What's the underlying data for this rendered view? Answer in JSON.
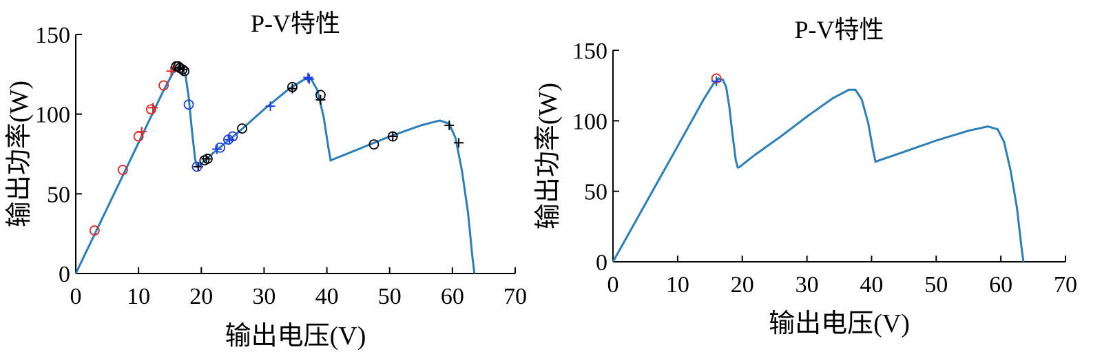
{
  "chart_data": [
    {
      "type": "line",
      "title": "P-V特性",
      "xlabel": "输出电压(V)",
      "ylabel": "输出功率(W)",
      "xlim": [
        0,
        70
      ],
      "ylim": [
        0,
        150
      ],
      "xticks": [
        0,
        10,
        20,
        30,
        40,
        50,
        60,
        70
      ],
      "yticks": [
        0,
        50,
        100,
        150
      ],
      "grid": false,
      "curve_color": "#2a7fb8",
      "curve": {
        "x": [
          0,
          5,
          10,
          14,
          15.5,
          16.3,
          17,
          17.5,
          18,
          18.5,
          19,
          19.3,
          19.5,
          22,
          26,
          30,
          34,
          36.5,
          37.5,
          38.5,
          39.5,
          40.2,
          40.6,
          45,
          50,
          55,
          58,
          59.5,
          60.5,
          61.5,
          62.5,
          63.2,
          63.5
        ],
        "y": [
          0,
          41,
          82,
          115,
          126,
          130,
          129,
          124,
          110,
          90,
          72,
          67,
          67,
          76,
          89,
          103,
          116,
          122,
          122,
          115,
          98,
          80,
          71,
          78,
          86,
          93,
          96,
          94,
          85,
          65,
          38,
          10,
          0
        ]
      },
      "markers": [
        {
          "color": "#e8221e",
          "symbol": "circle",
          "x": [
            3,
            7.5,
            10,
            12,
            14
          ],
          "y": [
            27,
            65,
            86,
            103,
            118
          ]
        },
        {
          "color": "#e8221e",
          "symbol": "plus",
          "x": [
            10.5,
            12.3,
            15.2,
            15.8
          ],
          "y": [
            89,
            104,
            127,
            129
          ]
        },
        {
          "color": "#000000",
          "symbol": "circle",
          "x": [
            16,
            16.3,
            16.6,
            17,
            17.3,
            20.5,
            21,
            26.5,
            34.5,
            39,
            47.5,
            50.5
          ],
          "y": [
            130,
            130,
            129,
            128,
            127,
            71,
            72,
            91,
            117,
            112,
            81,
            86
          ]
        },
        {
          "color": "#000000",
          "symbol": "plus",
          "x": [
            16.5,
            17,
            19.5,
            20.8,
            34.5,
            39,
            50.5,
            59.5,
            61
          ],
          "y": [
            129,
            128,
            67,
            72,
            116,
            109,
            86,
            93,
            82
          ]
        },
        {
          "color": "#1f3fe0",
          "symbol": "circle",
          "x": [
            18,
            19.3,
            23,
            24.3,
            25
          ],
          "y": [
            106,
            67,
            79,
            84,
            86
          ]
        },
        {
          "color": "#1f3fe0",
          "symbol": "plus",
          "x": [
            22.5,
            24.5,
            31,
            37,
            37.2
          ],
          "y": [
            78,
            84,
            105,
            123,
            122
          ]
        }
      ]
    },
    {
      "type": "line",
      "title": "P-V特性",
      "xlabel": "输出电压(V)",
      "ylabel": "输出功率(W)",
      "xlim": [
        0,
        70
      ],
      "ylim": [
        0,
        150
      ],
      "xticks": [
        0,
        10,
        20,
        30,
        40,
        50,
        60,
        70
      ],
      "yticks": [
        0,
        50,
        100,
        150
      ],
      "grid": false,
      "curve_color": "#2a7fb8",
      "curve": {
        "x": [
          0,
          5,
          10,
          14,
          15.5,
          16.3,
          17,
          17.5,
          18,
          18.5,
          19,
          19.3,
          19.5,
          22,
          26,
          30,
          34,
          36.5,
          37.5,
          38.5,
          39.5,
          40.2,
          40.6,
          45,
          50,
          55,
          58,
          59.5,
          60.5,
          61.5,
          62.5,
          63.2,
          63.5
        ],
        "y": [
          0,
          41,
          82,
          115,
          126,
          130,
          129,
          124,
          110,
          90,
          72,
          67,
          67,
          76,
          89,
          103,
          116,
          122,
          122,
          115,
          98,
          80,
          71,
          78,
          86,
          93,
          96,
          94,
          85,
          65,
          38,
          10,
          0
        ]
      },
      "markers": [
        {
          "color": "#e8221e",
          "symbol": "circle",
          "x": [
            16
          ],
          "y": [
            130
          ]
        },
        {
          "color": "#1f3fe0",
          "symbol": "plus",
          "x": [
            16
          ],
          "y": [
            128
          ]
        }
      ]
    }
  ]
}
